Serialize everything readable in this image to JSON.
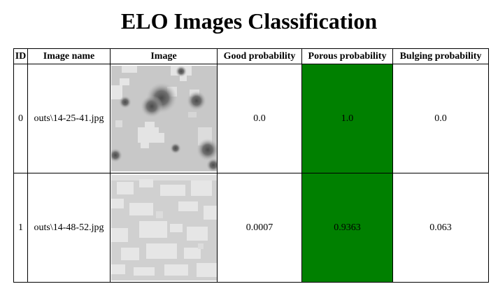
{
  "page": {
    "title": "ELO Images Classification"
  },
  "table": {
    "headers": [
      "ID",
      "Image name",
      "Image",
      "Good probability",
      "Porous probability",
      "Bulging probability"
    ],
    "rows": [
      {
        "id": "0",
        "image_name": "outs\\14-25-41.jpg",
        "image": "porous-texture-thumbnail",
        "good": "0.0",
        "porous": "1.0",
        "bulging": "0.0"
      },
      {
        "id": "1",
        "image_name": "outs\\14-48-52.jpg",
        "image": "light-texture-thumbnail",
        "good": "0.0007",
        "porous": "0.9363",
        "bulging": "0.063"
      }
    ]
  },
  "colors": {
    "highlight": "#008000"
  }
}
